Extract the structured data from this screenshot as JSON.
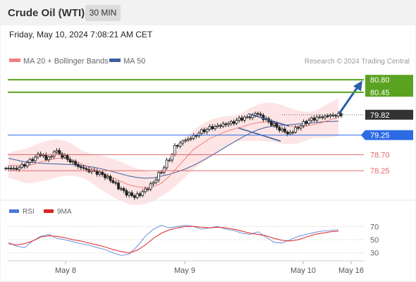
{
  "header": {
    "title": "Crude Oil (WTI)",
    "timeframe": "30 MIN"
  },
  "datetime": "Friday, May 10, 2024 7:08:21 AM CET",
  "legend": {
    "ma20": "MA 20 + Bollinger Bands",
    "ma50": "MA 50",
    "credit": "Research © 2024 Trading Central",
    "rsi": "RSI",
    "rsi_ma": "9MA"
  },
  "colors": {
    "price_candle": "#222222",
    "ma20": "#f08080",
    "bollinger_fill": "#fde0e0",
    "ma50": "#3a5f9e",
    "resistance": "#5aa321",
    "pivot": "#2d6be4",
    "support": "#e06666",
    "current_price": "#333333",
    "arrow": "#2a5fa8",
    "rsi": "#4a78d8",
    "rsi_ma": "#dd2222"
  },
  "chart_data": {
    "type": "line",
    "price_axis": {
      "ylim": [
        77.7,
        81.1
      ],
      "levels": [
        {
          "label": "80.80",
          "value": 80.8,
          "kind": "resistance"
        },
        {
          "label": "80.45",
          "value": 80.45,
          "kind": "resistance"
        },
        {
          "label": "79.82",
          "value": 79.82,
          "kind": "current"
        },
        {
          "label": "79.25",
          "value": 79.25,
          "kind": "pivot"
        },
        {
          "label": "78.70",
          "value": 78.7,
          "kind": "support"
        },
        {
          "label": "78.25",
          "value": 78.25,
          "kind": "support"
        }
      ]
    },
    "x_ticks": [
      "May 8",
      "May 9",
      "May 10",
      "May 16"
    ],
    "price_path": [
      78.32,
      78.3,
      78.4,
      78.55,
      78.7,
      78.6,
      78.8,
      78.65,
      78.5,
      78.35,
      78.25,
      78.2,
      78.1,
      77.95,
      77.75,
      77.6,
      77.55,
      77.7,
      77.9,
      78.2,
      78.55,
      78.95,
      79.1,
      79.2,
      79.35,
      79.45,
      79.5,
      79.55,
      79.6,
      79.7,
      79.75,
      79.85,
      79.7,
      79.55,
      79.4,
      79.3,
      79.45,
      79.6,
      79.7,
      79.75,
      79.8,
      79.82
    ],
    "ma20_path": [
      78.4,
      78.4,
      78.38,
      78.42,
      78.5,
      78.55,
      78.6,
      78.6,
      78.55,
      78.45,
      78.35,
      78.25,
      78.15,
      78.05,
      77.95,
      77.85,
      77.8,
      77.78,
      77.8,
      77.9,
      78.1,
      78.35,
      78.6,
      78.85,
      79.0,
      79.15,
      79.25,
      79.35,
      79.42,
      79.48,
      79.55,
      79.6,
      79.62,
      79.6,
      79.55,
      79.5,
      79.48,
      79.5,
      79.55,
      79.6,
      79.68,
      79.75
    ],
    "ma50_path": [
      78.6,
      78.55,
      78.5,
      78.48,
      78.46,
      78.45,
      78.44,
      78.43,
      78.42,
      78.4,
      78.37,
      78.33,
      78.28,
      78.22,
      78.16,
      78.1,
      78.06,
      78.04,
      78.05,
      78.1,
      78.15,
      78.22,
      78.3,
      78.4,
      78.52,
      78.65,
      78.78,
      78.92,
      79.05,
      79.18,
      79.3,
      79.4,
      79.47,
      79.5,
      79.52,
      79.54,
      79.56,
      79.58,
      79.6,
      79.62,
      79.63,
      79.64
    ],
    "rsi": {
      "ylim": [
        20,
        80
      ],
      "ticks": [
        70,
        50,
        30
      ],
      "rsi_path": [
        46,
        40,
        38,
        48,
        55,
        58,
        52,
        50,
        47,
        44,
        42,
        38,
        35,
        30,
        26,
        28,
        40,
        55,
        66,
        72,
        68,
        70,
        72,
        70,
        66,
        68,
        70,
        66,
        64,
        60,
        58,
        62,
        54,
        46,
        45,
        50,
        55,
        58,
        61,
        63,
        64,
        65
      ],
      "ma9_path": [
        44,
        42,
        44,
        48,
        54,
        56,
        55,
        53,
        50,
        48,
        45,
        42,
        39,
        35,
        32,
        30,
        34,
        42,
        52,
        60,
        65,
        68,
        70,
        70,
        69,
        68,
        69,
        68,
        66,
        63,
        60,
        58,
        56,
        52,
        49,
        48,
        50,
        54,
        58,
        60,
        62,
        63
      ]
    }
  }
}
